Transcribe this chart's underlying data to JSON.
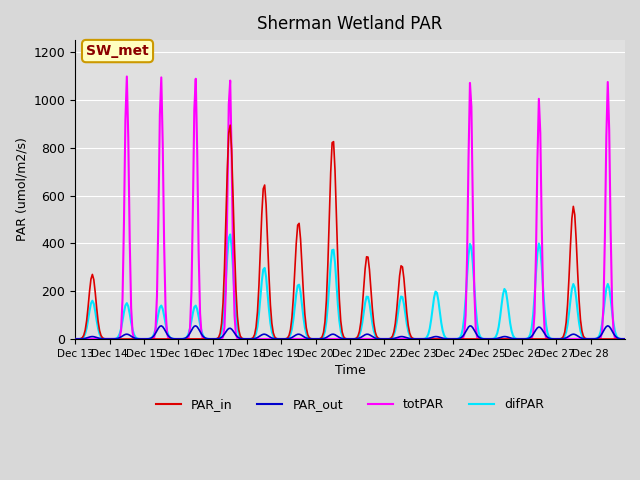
{
  "title": "Sherman Wetland PAR",
  "ylabel": "PAR (umol/m2/s)",
  "xlabel": "Time",
  "annotation": "SW_met",
  "ylim": [
    0,
    1250
  ],
  "plot_bg_color": "#e0e0e0",
  "fig_bg_color": "#d8d8d8",
  "line_colors": {
    "PAR_in": "#dd0000",
    "PAR_out": "#0000cc",
    "totPAR": "#ff00ff",
    "difPAR": "#00e5ff"
  },
  "line_widths": {
    "PAR_in": 1.2,
    "PAR_out": 1.2,
    "totPAR": 1.5,
    "difPAR": 1.5
  },
  "xtick_labels": [
    "Dec 13",
    "Dec 14",
    "Dec 15",
    "Dec 16",
    "Dec 17",
    "Dec 18",
    "Dec 19",
    "Dec 20",
    "Dec 21",
    "Dec 22",
    "Dec 23",
    "Dec 24",
    "Dec 25",
    "Dec 26",
    "Dec 27",
    "Dec 28"
  ],
  "ytick_values": [
    0,
    200,
    400,
    600,
    800,
    1000,
    1200
  ],
  "legend_entries": [
    "PAR_in",
    "PAR_out",
    "totPAR",
    "difPAR"
  ],
  "totPAR_peaks": [
    0,
    1100,
    1100,
    1100,
    1100,
    0,
    0,
    0,
    0,
    0,
    0,
    1090,
    0,
    1010,
    0,
    1075
  ],
  "PAR_in_peaks": [
    270,
    0,
    0,
    0,
    900,
    650,
    490,
    840,
    350,
    310,
    0,
    0,
    0,
    0,
    555,
    0
  ],
  "PAR_out_peaks": [
    10,
    20,
    55,
    55,
    45,
    20,
    20,
    20,
    20,
    10,
    10,
    55,
    10,
    50,
    20,
    55
  ],
  "difPAR_peaks": [
    160,
    150,
    140,
    140,
    440,
    300,
    230,
    380,
    180,
    180,
    200,
    400,
    210,
    400,
    230,
    230
  ]
}
